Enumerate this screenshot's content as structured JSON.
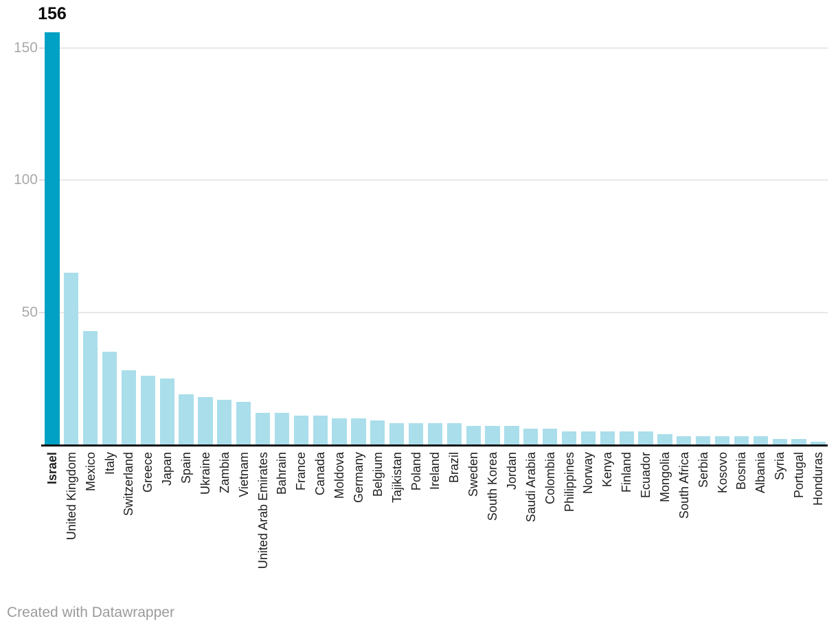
{
  "chart_data": {
    "type": "bar",
    "title": "",
    "xlabel": "",
    "ylabel": "",
    "categories": [
      "Israel",
      "United Kingdom",
      "Mexico",
      "Italy",
      "Switzerland",
      "Greece",
      "Japan",
      "Spain",
      "Ukraine",
      "Zambia",
      "Vietnam",
      "United Arab Emirates",
      "Bahrain",
      "France",
      "Canada",
      "Moldova",
      "Germany",
      "Belgium",
      "Tajikistan",
      "Poland",
      "Ireland",
      "Brazil",
      "Sweden",
      "South Korea",
      "Jordan",
      "Saudi Arabia",
      "Colombia",
      "Philippines",
      "Norway",
      "Kenya",
      "Finland",
      "Ecuador",
      "Mongolia",
      "South Africa",
      "Serbia",
      "Kosovo",
      "Bosnia",
      "Albania",
      "Syria",
      "Portugal",
      "Honduras"
    ],
    "values": [
      156,
      65,
      43,
      35,
      28,
      26,
      25,
      19,
      18,
      17,
      16,
      12,
      12,
      11,
      11,
      10,
      10,
      9,
      8,
      8,
      8,
      8,
      7,
      7,
      7,
      6,
      6,
      5,
      5,
      5,
      5,
      5,
      4,
      3,
      3,
      3,
      3,
      3,
      2,
      2,
      1
    ],
    "highlight_index": 0,
    "highlight_category": "Israel",
    "value_label_shown": "156",
    "yticks": [
      50,
      100,
      150
    ],
    "ylim": [
      0,
      156
    ],
    "grid": "horizontal",
    "legend": "none",
    "x_tick_rotation_deg": -90,
    "colors": {
      "highlight_bar": "#00a1c4",
      "bar": "#aadeeb",
      "gridline": "#e8e8e8",
      "baseline": "#111111",
      "y_tick_text": "#a9a9a9",
      "x_tick_text": "#1d1d1d",
      "value_label_text": "#0a0a0a"
    }
  },
  "footer": {
    "credit": "Created with Datawrapper"
  }
}
